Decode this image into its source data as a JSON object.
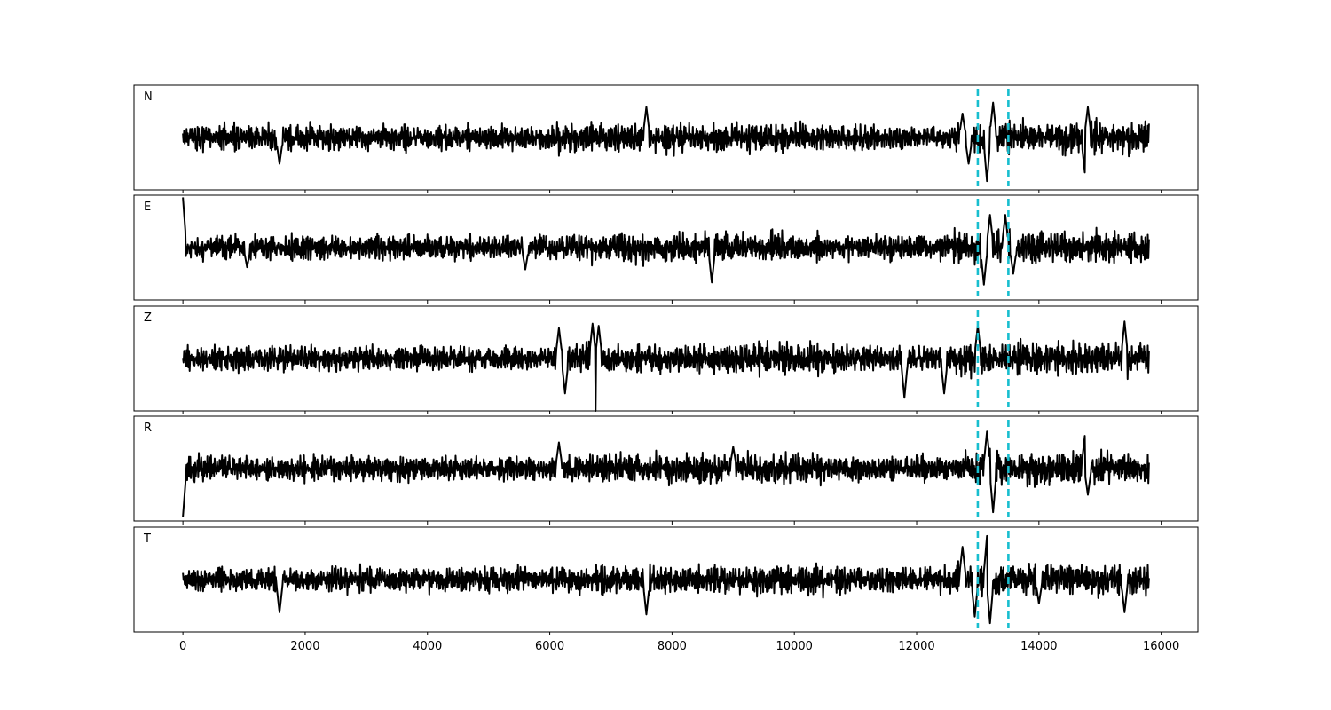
{
  "colors": {
    "trace": "#000000",
    "marker": "#17becf",
    "frame": "#000000",
    "background": "#ffffff"
  },
  "chart_data": {
    "type": "line",
    "title": "",
    "xlabel": "",
    "ylabel": "",
    "xlim": [
      -800,
      16600
    ],
    "xticks": [
      0,
      2000,
      4000,
      6000,
      8000,
      10000,
      12000,
      14000,
      16000
    ],
    "grid": false,
    "legend": "none",
    "sample_range": [
      0,
      15800
    ],
    "vertical_markers": [
      13000,
      13500
    ],
    "marker_style": "dashed",
    "panels": [
      {
        "name": "N",
        "ylim": [
          -1.2,
          1.2
        ],
        "spikes": [
          [
            13150,
            -1.0
          ],
          [
            13250,
            0.8
          ],
          [
            14750,
            -0.8
          ],
          [
            14800,
            0.7
          ],
          [
            1580,
            0.6
          ],
          [
            1580,
            -0.6
          ],
          [
            7580,
            0.7
          ],
          [
            12750,
            0.55
          ],
          [
            12850,
            -0.6
          ]
        ]
      },
      {
        "name": "E",
        "ylim": [
          -1.2,
          1.2
        ],
        "spikes": [
          [
            0,
            1.15
          ],
          [
            13100,
            -0.85
          ],
          [
            13200,
            0.75
          ],
          [
            13450,
            0.75
          ],
          [
            13580,
            -0.6
          ],
          [
            8650,
            -0.8
          ],
          [
            1050,
            -0.45
          ],
          [
            5600,
            -0.5
          ]
        ]
      },
      {
        "name": "Z",
        "ylim": [
          -1.2,
          1.2
        ],
        "spikes": [
          [
            6750,
            -1.2
          ],
          [
            6700,
            0.8
          ],
          [
            6800,
            0.75
          ],
          [
            6250,
            -0.8
          ],
          [
            6150,
            0.7
          ],
          [
            11800,
            -0.9
          ],
          [
            12450,
            -0.8
          ],
          [
            15400,
            0.85
          ],
          [
            13000,
            0.75
          ]
        ]
      },
      {
        "name": "R",
        "ylim": [
          -1.2,
          1.2
        ],
        "spikes": [
          [
            0,
            -1.1
          ],
          [
            13150,
            0.85
          ],
          [
            13250,
            -1.0
          ],
          [
            14750,
            0.75
          ],
          [
            14800,
            -0.6
          ],
          [
            6150,
            0.6
          ],
          [
            9000,
            0.5
          ]
        ]
      },
      {
        "name": "T",
        "ylim": [
          -1.2,
          1.2
        ],
        "spikes": [
          [
            13150,
            1.0
          ],
          [
            13200,
            -1.0
          ],
          [
            12950,
            -0.85
          ],
          [
            1580,
            -0.75
          ],
          [
            7580,
            -0.8
          ],
          [
            12750,
            0.75
          ],
          [
            15400,
            -0.75
          ],
          [
            14000,
            -0.55
          ]
        ]
      }
    ]
  }
}
